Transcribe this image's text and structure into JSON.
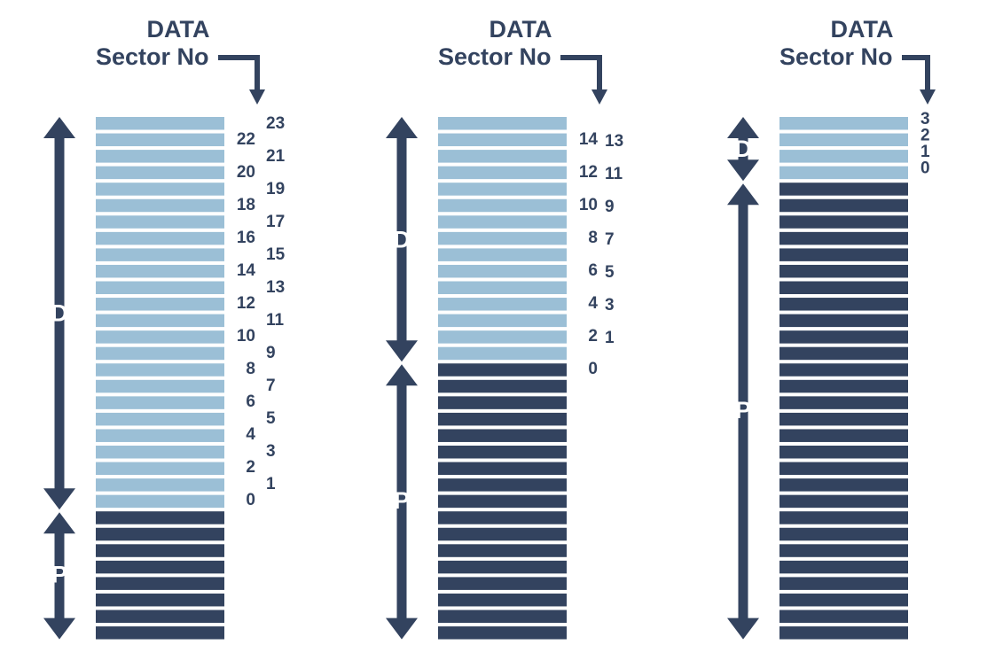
{
  "colors": {
    "data": "#9bbfd6",
    "parity": "#33435f",
    "ink": "#33435f"
  },
  "columns": [
    {
      "header": {
        "line1": "DATA",
        "line2": "Sector No"
      },
      "data_label": "D",
      "parity_label": "P",
      "data_count": 24,
      "parity_count": 8,
      "numbers_left": [
        "22",
        "20",
        "18",
        "16",
        "14",
        "12",
        "10",
        "8",
        "6",
        "4",
        "2",
        "0"
      ],
      "numbers_right": [
        "23",
        "21",
        "19",
        "17",
        "15",
        "13",
        "11",
        "9",
        "7",
        "5",
        "3",
        "1"
      ]
    },
    {
      "header": {
        "line1": "DATA",
        "line2": "Sector No"
      },
      "data_label": "D",
      "parity_label": "P",
      "data_count": 15,
      "parity_count": 17,
      "numbers_left": [
        "14",
        "12",
        "10",
        "8",
        "6",
        "4",
        "2",
        "0"
      ],
      "numbers_right": [
        "13",
        "11",
        "9",
        "7",
        "5",
        "3",
        "1"
      ]
    },
    {
      "header": {
        "line1": "DATA",
        "line2": "Sector No"
      },
      "data_label": "D",
      "parity_label": "P",
      "data_count": 4,
      "parity_count": 28,
      "numbers_left": [
        "3",
        "2",
        "1",
        "0"
      ],
      "numbers_right": []
    }
  ]
}
